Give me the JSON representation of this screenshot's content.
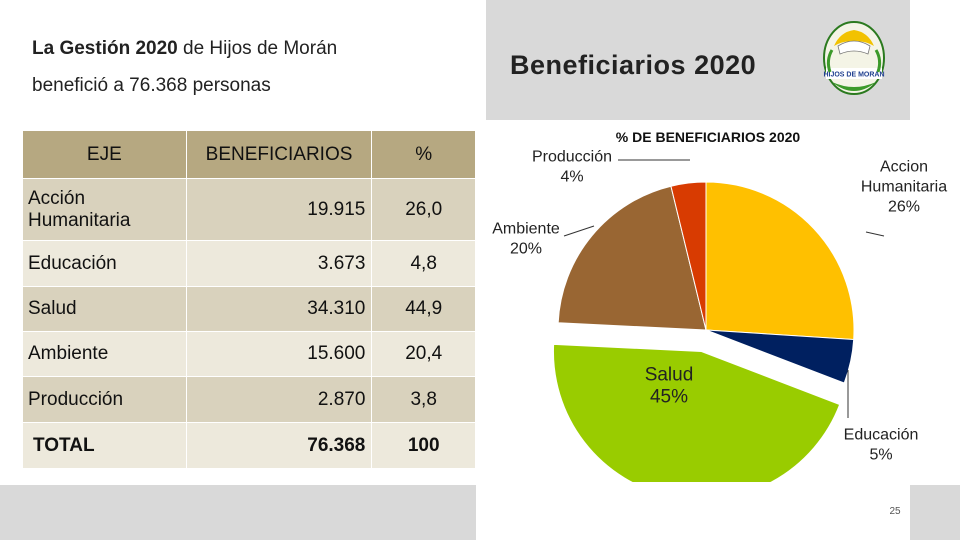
{
  "intro": {
    "bold": "La Gestión 2020",
    "rest_line1": "de Hijos de Morán",
    "line2": "benefició a 76.368 personas"
  },
  "header": {
    "title": "Beneficiarios  2020",
    "logo_text": "HIJOS DE MORAN"
  },
  "table": {
    "headers": [
      "EJE",
      "BENEFICIARIOS",
      "%"
    ],
    "rows": [
      {
        "eje": "Acción Humanitaria",
        "beneficiarios": "19.915",
        "pct": "26,0"
      },
      {
        "eje": "Educación",
        "beneficiarios": "3.673",
        "pct": "4,8"
      },
      {
        "eje": "Salud",
        "beneficiarios": "34.310",
        "pct": "44,9"
      },
      {
        "eje": "Ambiente",
        "beneficiarios": "15.600",
        "pct": "20,4"
      },
      {
        "eje": "Producción",
        "beneficiarios": "2.870",
        "pct": "3,8"
      }
    ],
    "total": {
      "eje": "TOTAL",
      "beneficiarios": "76.368",
      "pct": "100"
    }
  },
  "chart_data": {
    "type": "pie",
    "title": "% DE BENEFICIARIOS 2020",
    "slices": [
      {
        "name": "Accion Humanitaria",
        "label_lines": [
          "Accion",
          "Humanitaria"
        ],
        "pct_label": "26%",
        "value": 26.0,
        "color": "#ffc000"
      },
      {
        "name": "Educación",
        "label_lines": [
          "Educación"
        ],
        "pct_label": "5%",
        "value": 4.8,
        "color": "#002060"
      },
      {
        "name": "Salud",
        "label_lines": [
          "Salud"
        ],
        "pct_label": "45%",
        "value": 44.9,
        "color": "#99cc00"
      },
      {
        "name": "Ambiente",
        "label_lines": [
          "Ambiente"
        ],
        "pct_label": "20%",
        "value": 20.4,
        "color": "#996633"
      },
      {
        "name": "Producción",
        "label_lines": [
          "Producción"
        ],
        "pct_label": "4%",
        "value": 3.8,
        "color": "#d83b01"
      }
    ]
  },
  "page": {
    "number": "25"
  }
}
